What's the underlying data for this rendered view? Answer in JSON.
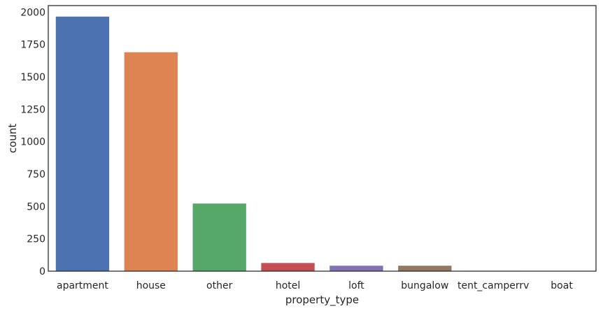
{
  "chart_data": {
    "type": "bar",
    "title": "",
    "xlabel": "property_type",
    "ylabel": "count",
    "ylim": [
      0,
      2050
    ],
    "yticks": [
      0,
      250,
      500,
      750,
      1000,
      1250,
      1500,
      1750,
      2000
    ],
    "grid": false,
    "categories": [
      "apartment",
      "house",
      "other",
      "hotel",
      "loft",
      "bungalow",
      "tent_camperrv",
      "boat"
    ],
    "values": [
      1965,
      1690,
      522,
      63,
      42,
      42,
      3,
      2
    ],
    "colors": [
      "#4c72b0",
      "#dd8452",
      "#55a868",
      "#c44e52",
      "#8172b3",
      "#937860",
      "#da8bc3",
      "#8c8c8c"
    ]
  }
}
